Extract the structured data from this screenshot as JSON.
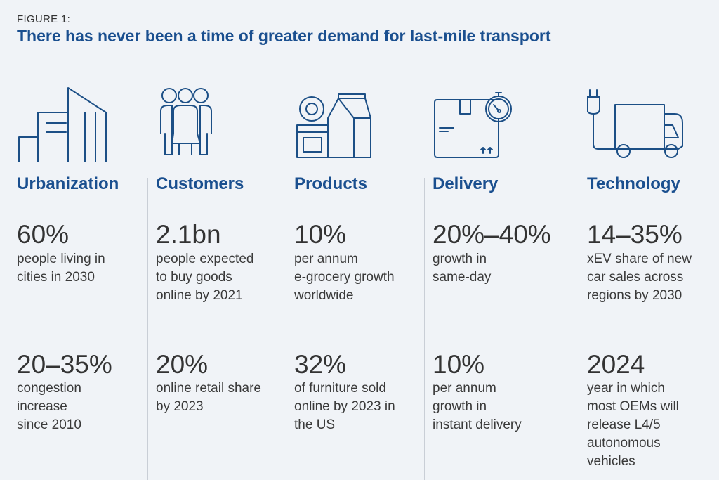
{
  "figure_label": "FIGURE 1:",
  "title": "There has never been a time of greater demand for last-mile transport",
  "colors": {
    "accent": "#1a4f8f",
    "background": "#f0f3f7",
    "text": "#333333"
  },
  "columns": [
    {
      "icon": "city-buildings-icon",
      "heading": "Urbanization",
      "stat1": {
        "value": "60%",
        "lines": [
          "people living in",
          "cities in 2030"
        ]
      },
      "stat2": {
        "value": "20–35%",
        "lines": [
          "congestion",
          "increase",
          "since 2010"
        ]
      }
    },
    {
      "icon": "people-group-icon",
      "heading": "Customers",
      "stat1": {
        "value": "2.1bn",
        "lines": [
          "people expected",
          "to buy goods",
          "online by 2021"
        ]
      },
      "stat2": {
        "value": "20%",
        "lines": [
          "online retail share",
          "by 2023"
        ]
      }
    },
    {
      "icon": "groceries-icon",
      "heading": "Products",
      "stat1": {
        "value": "10%",
        "lines": [
          "per annum",
          "e-grocery growth",
          "worldwide"
        ]
      },
      "stat2": {
        "value": "32%",
        "lines": [
          "of furniture sold",
          "online by 2023 in",
          "the US"
        ]
      }
    },
    {
      "icon": "package-stopwatch-icon",
      "heading": "Delivery",
      "stat1": {
        "value": "20%–40%",
        "lines": [
          "growth in",
          "same-day"
        ]
      },
      "stat2": {
        "value": "10%",
        "lines": [
          "per annum",
          "growth in",
          "instant delivery"
        ]
      }
    },
    {
      "icon": "electric-truck-icon",
      "heading": "Technology",
      "stat1": {
        "value": "14–35%",
        "lines": [
          "xEV share of new",
          "car sales across",
          "regions by 2030"
        ]
      },
      "stat2": {
        "value": "2024",
        "lines": [
          "year in which",
          "most OEMs will",
          "release L4/5",
          "autonomous",
          "vehicles"
        ]
      }
    }
  ]
}
